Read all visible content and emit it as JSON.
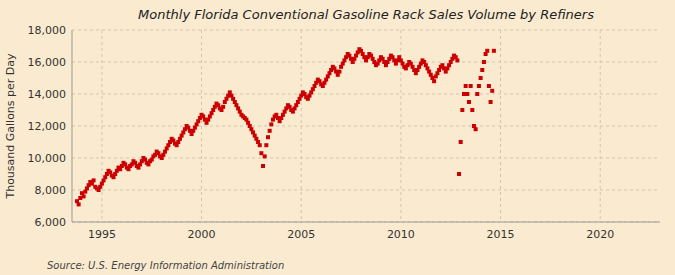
{
  "chart_data": {
    "type": "scatter",
    "title": "Monthly Florida Conventional Gasoline Rack Sales Volume by Refiners",
    "y_label": "Thousand Gallons per Day",
    "annotations": [
      "Source: U.S. Energy Information Administration"
    ],
    "color": "#cc0000",
    "marker": "square",
    "grid": true,
    "xlim": [
      1993.5,
      2023.0
    ],
    "xticks": [
      1995,
      2000,
      2005,
      2010,
      2015,
      2020
    ],
    "ylim": [
      6000,
      18000
    ],
    "yticks": [
      {
        "value": 6000,
        "label": "6,000"
      },
      {
        "value": 8000,
        "label": "8,000"
      },
      {
        "value": 10000,
        "label": "10,000"
      },
      {
        "value": 12000,
        "label": "12,000"
      },
      {
        "value": 14000,
        "label": "14,000"
      },
      {
        "value": 16000,
        "label": "16,000"
      },
      {
        "value": 18000,
        "label": "18,000"
      }
    ],
    "x": [
      1993.75,
      1993.8333,
      1993.9167,
      1994,
      1994.0833,
      1994.1667,
      1994.25,
      1994.3333,
      1994.4167,
      1994.5,
      1994.5833,
      1994.6667,
      1994.75,
      1994.8333,
      1994.9167,
      1995,
      1995.0833,
      1995.1667,
      1995.25,
      1995.3333,
      1995.4167,
      1995.5,
      1995.5833,
      1995.6667,
      1995.75,
      1995.8333,
      1995.9167,
      1996,
      1996.0833,
      1996.1667,
      1996.25,
      1996.3333,
      1996.4167,
      1996.5,
      1996.5833,
      1996.6667,
      1996.75,
      1996.8333,
      1996.9167,
      1997,
      1997.0833,
      1997.1667,
      1997.25,
      1997.3333,
      1997.4167,
      1997.5,
      1997.5833,
      1997.6667,
      1997.75,
      1997.8333,
      1997.9167,
      1998,
      1998.0833,
      1998.1667,
      1998.25,
      1998.3333,
      1998.4167,
      1998.5,
      1998.5833,
      1998.6667,
      1998.75,
      1998.8333,
      1998.9167,
      1999,
      1999.0833,
      1999.1667,
      1999.25,
      1999.3333,
      1999.4167,
      1999.5,
      1999.5833,
      1999.6667,
      1999.75,
      1999.8333,
      1999.9167,
      2000,
      2000.0833,
      2000.1667,
      2000.25,
      2000.3333,
      2000.4167,
      2000.5,
      2000.5833,
      2000.6667,
      2000.75,
      2000.8333,
      2000.9167,
      2001,
      2001.0833,
      2001.1667,
      2001.25,
      2001.3333,
      2001.4167,
      2001.5,
      2001.5833,
      2001.6667,
      2001.75,
      2001.8333,
      2001.9167,
      2002,
      2002.0833,
      2002.1667,
      2002.25,
      2002.3333,
      2002.4167,
      2002.5,
      2002.5833,
      2002.6667,
      2002.75,
      2002.8333,
      2002.9167,
      2003,
      2003.0833,
      2003.1667,
      2003.25,
      2003.3333,
      2003.4167,
      2003.5,
      2003.5833,
      2003.6667,
      2003.75,
      2003.8333,
      2003.9167,
      2004,
      2004.0833,
      2004.1667,
      2004.25,
      2004.3333,
      2004.4167,
      2004.5,
      2004.5833,
      2004.6667,
      2004.75,
      2004.8333,
      2004.9167,
      2005,
      2005.0833,
      2005.1667,
      2005.25,
      2005.3333,
      2005.4167,
      2005.5,
      2005.5833,
      2005.6667,
      2005.75,
      2005.8333,
      2005.9167,
      2006,
      2006.0833,
      2006.1667,
      2006.25,
      2006.3333,
      2006.4167,
      2006.5,
      2006.5833,
      2006.6667,
      2006.75,
      2006.8333,
      2006.9167,
      2007,
      2007.0833,
      2007.1667,
      2007.25,
      2007.3333,
      2007.4167,
      2007.5,
      2007.5833,
      2007.6667,
      2007.75,
      2007.8333,
      2007.9167,
      2008,
      2008.0833,
      2008.1667,
      2008.25,
      2008.3333,
      2008.4167,
      2008.5,
      2008.5833,
      2008.6667,
      2008.75,
      2008.8333,
      2008.9167,
      2009,
      2009.0833,
      2009.1667,
      2009.25,
      2009.3333,
      2009.4167,
      2009.5,
      2009.5833,
      2009.6667,
      2009.75,
      2009.8333,
      2009.9167,
      2010,
      2010.0833,
      2010.1667,
      2010.25,
      2010.3333,
      2010.4167,
      2010.5,
      2010.5833,
      2010.6667,
      2010.75,
      2010.8333,
      2010.9167,
      2011,
      2011.0833,
      2011.1667,
      2011.25,
      2011.3333,
      2011.4167,
      2011.5,
      2011.5833,
      2011.6667,
      2011.75,
      2011.8333,
      2011.9167,
      2012,
      2012.0833,
      2012.1667,
      2012.25,
      2012.3333,
      2012.4167,
      2012.5,
      2012.5833,
      2012.6667,
      2012.75,
      2012.8333,
      2012.9167,
      2013,
      2013.0833,
      2013.1667,
      2013.25,
      2013.3333,
      2013.4167,
      2013.5,
      2013.5833,
      2013.6667,
      2013.75,
      2013.8333,
      2013.9167,
      2014,
      2014.0833,
      2014.1667,
      2014.25,
      2014.3333,
      2014.4167,
      2014.5,
      2014.5833,
      2014.6667
    ],
    "values": [
      7300,
      7100,
      7500,
      7800,
      7600,
      7900,
      8100,
      8300,
      8500,
      8400,
      8600,
      8200,
      8100,
      8000,
      8200,
      8400,
      8600,
      8800,
      9000,
      9200,
      9100,
      8900,
      8800,
      9000,
      9200,
      9400,
      9300,
      9500,
      9700,
      9600,
      9400,
      9300,
      9500,
      9600,
      9800,
      9700,
      9500,
      9400,
      9600,
      9800,
      10000,
      9900,
      9700,
      9600,
      9800,
      9900,
      10100,
      10200,
      10400,
      10300,
      10100,
      10000,
      10200,
      10400,
      10600,
      10800,
      11000,
      11200,
      11100,
      10900,
      10800,
      11000,
      11200,
      11400,
      11600,
      11800,
      12000,
      11900,
      11700,
      11500,
      11700,
      11900,
      12100,
      12300,
      12500,
      12700,
      12600,
      12400,
      12200,
      12400,
      12600,
      12800,
      13000,
      13200,
      13400,
      13300,
      13100,
      13000,
      13200,
      13500,
      13700,
      13900,
      14100,
      13900,
      13700,
      13500,
      13300,
      13100,
      12900,
      12700,
      12600,
      12500,
      12400,
      12200,
      12000,
      11800,
      11600,
      11400,
      11200,
      11000,
      10800,
      10300,
      9500,
      10100,
      10800,
      11300,
      11700,
      12100,
      12400,
      12600,
      12700,
      12500,
      12300,
      12500,
      12700,
      12900,
      13100,
      13300,
      13200,
      13000,
      12900,
      13100,
      13300,
      13500,
      13700,
      13900,
      14100,
      14000,
      13800,
      13700,
      13900,
      14100,
      14300,
      14500,
      14700,
      14900,
      14800,
      14600,
      14500,
      14700,
      14900,
      15100,
      15300,
      15500,
      15700,
      15600,
      15400,
      15200,
      15400,
      15700,
      15900,
      16100,
      16300,
      16500,
      16400,
      16200,
      16000,
      16200,
      16400,
      16600,
      16800,
      16700,
      16500,
      16300,
      16100,
      16300,
      16500,
      16400,
      16200,
      16000,
      15800,
      15900,
      16100,
      16300,
      16200,
      16000,
      15800,
      16000,
      16200,
      16400,
      16300,
      16100,
      15900,
      16100,
      16300,
      16100,
      15900,
      15700,
      15600,
      15800,
      16000,
      15900,
      15700,
      15500,
      15300,
      15500,
      15700,
      15900,
      16100,
      16000,
      15800,
      15600,
      15400,
      15200,
      15000,
      14800,
      15100,
      15300,
      15500,
      15700,
      15800,
      15600,
      15400,
      15600,
      15800,
      16000,
      16200,
      16400,
      16300,
      16100,
      9000,
      11000,
      13000,
      14000,
      14500,
      14000,
      13500,
      14500,
      13000,
      12000,
      11800,
      14000,
      14500,
      15000,
      15500,
      16000,
      16500,
      16700,
      14500,
      13500,
      14200,
      16700
    ]
  }
}
